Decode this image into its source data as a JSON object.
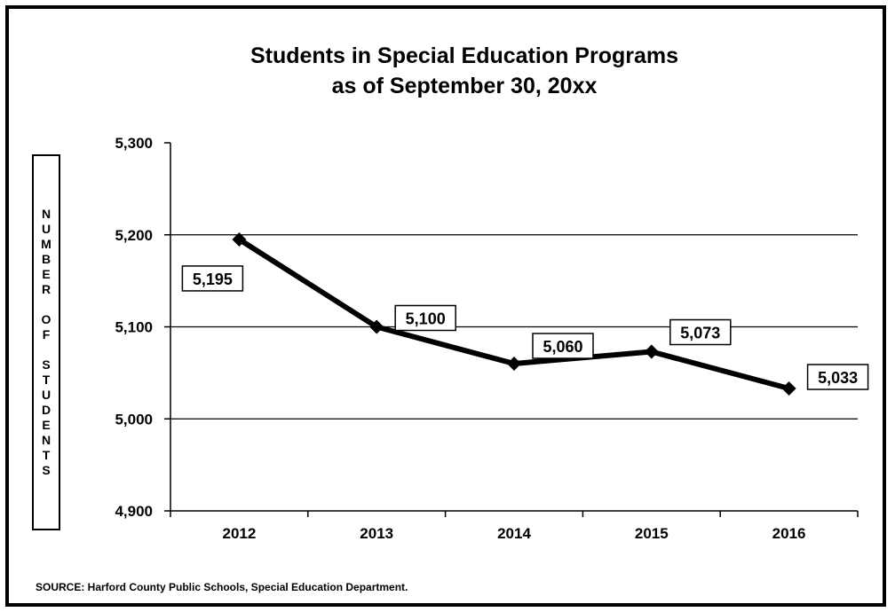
{
  "chart_data": {
    "type": "line",
    "title": "Students in Special Education Programs",
    "subtitle": "as of September 30, 20xx",
    "ylabel": "NUMBER OF STUDENTS",
    "xlabel": "",
    "categories": [
      "2012",
      "2013",
      "2014",
      "2015",
      "2016"
    ],
    "series": [
      {
        "values": [
          5195,
          5100,
          5060,
          5073,
          5033
        ]
      }
    ],
    "data_labels": [
      "5,195",
      "5,100",
      "5,060",
      "5,073",
      "5,033"
    ],
    "ylim": [
      4900,
      5300
    ],
    "yticks": [
      4900,
      5000,
      5100,
      5200,
      5300
    ],
    "ytick_labels": [
      "4,900",
      "5,000",
      "5,100",
      "5,200",
      "5,300"
    ],
    "grid": "horizontal",
    "legend": "none",
    "line_color": "#000000",
    "marker": "diamond"
  },
  "source_note": "SOURCE:  Harford County Public Schools, Special Education Department."
}
